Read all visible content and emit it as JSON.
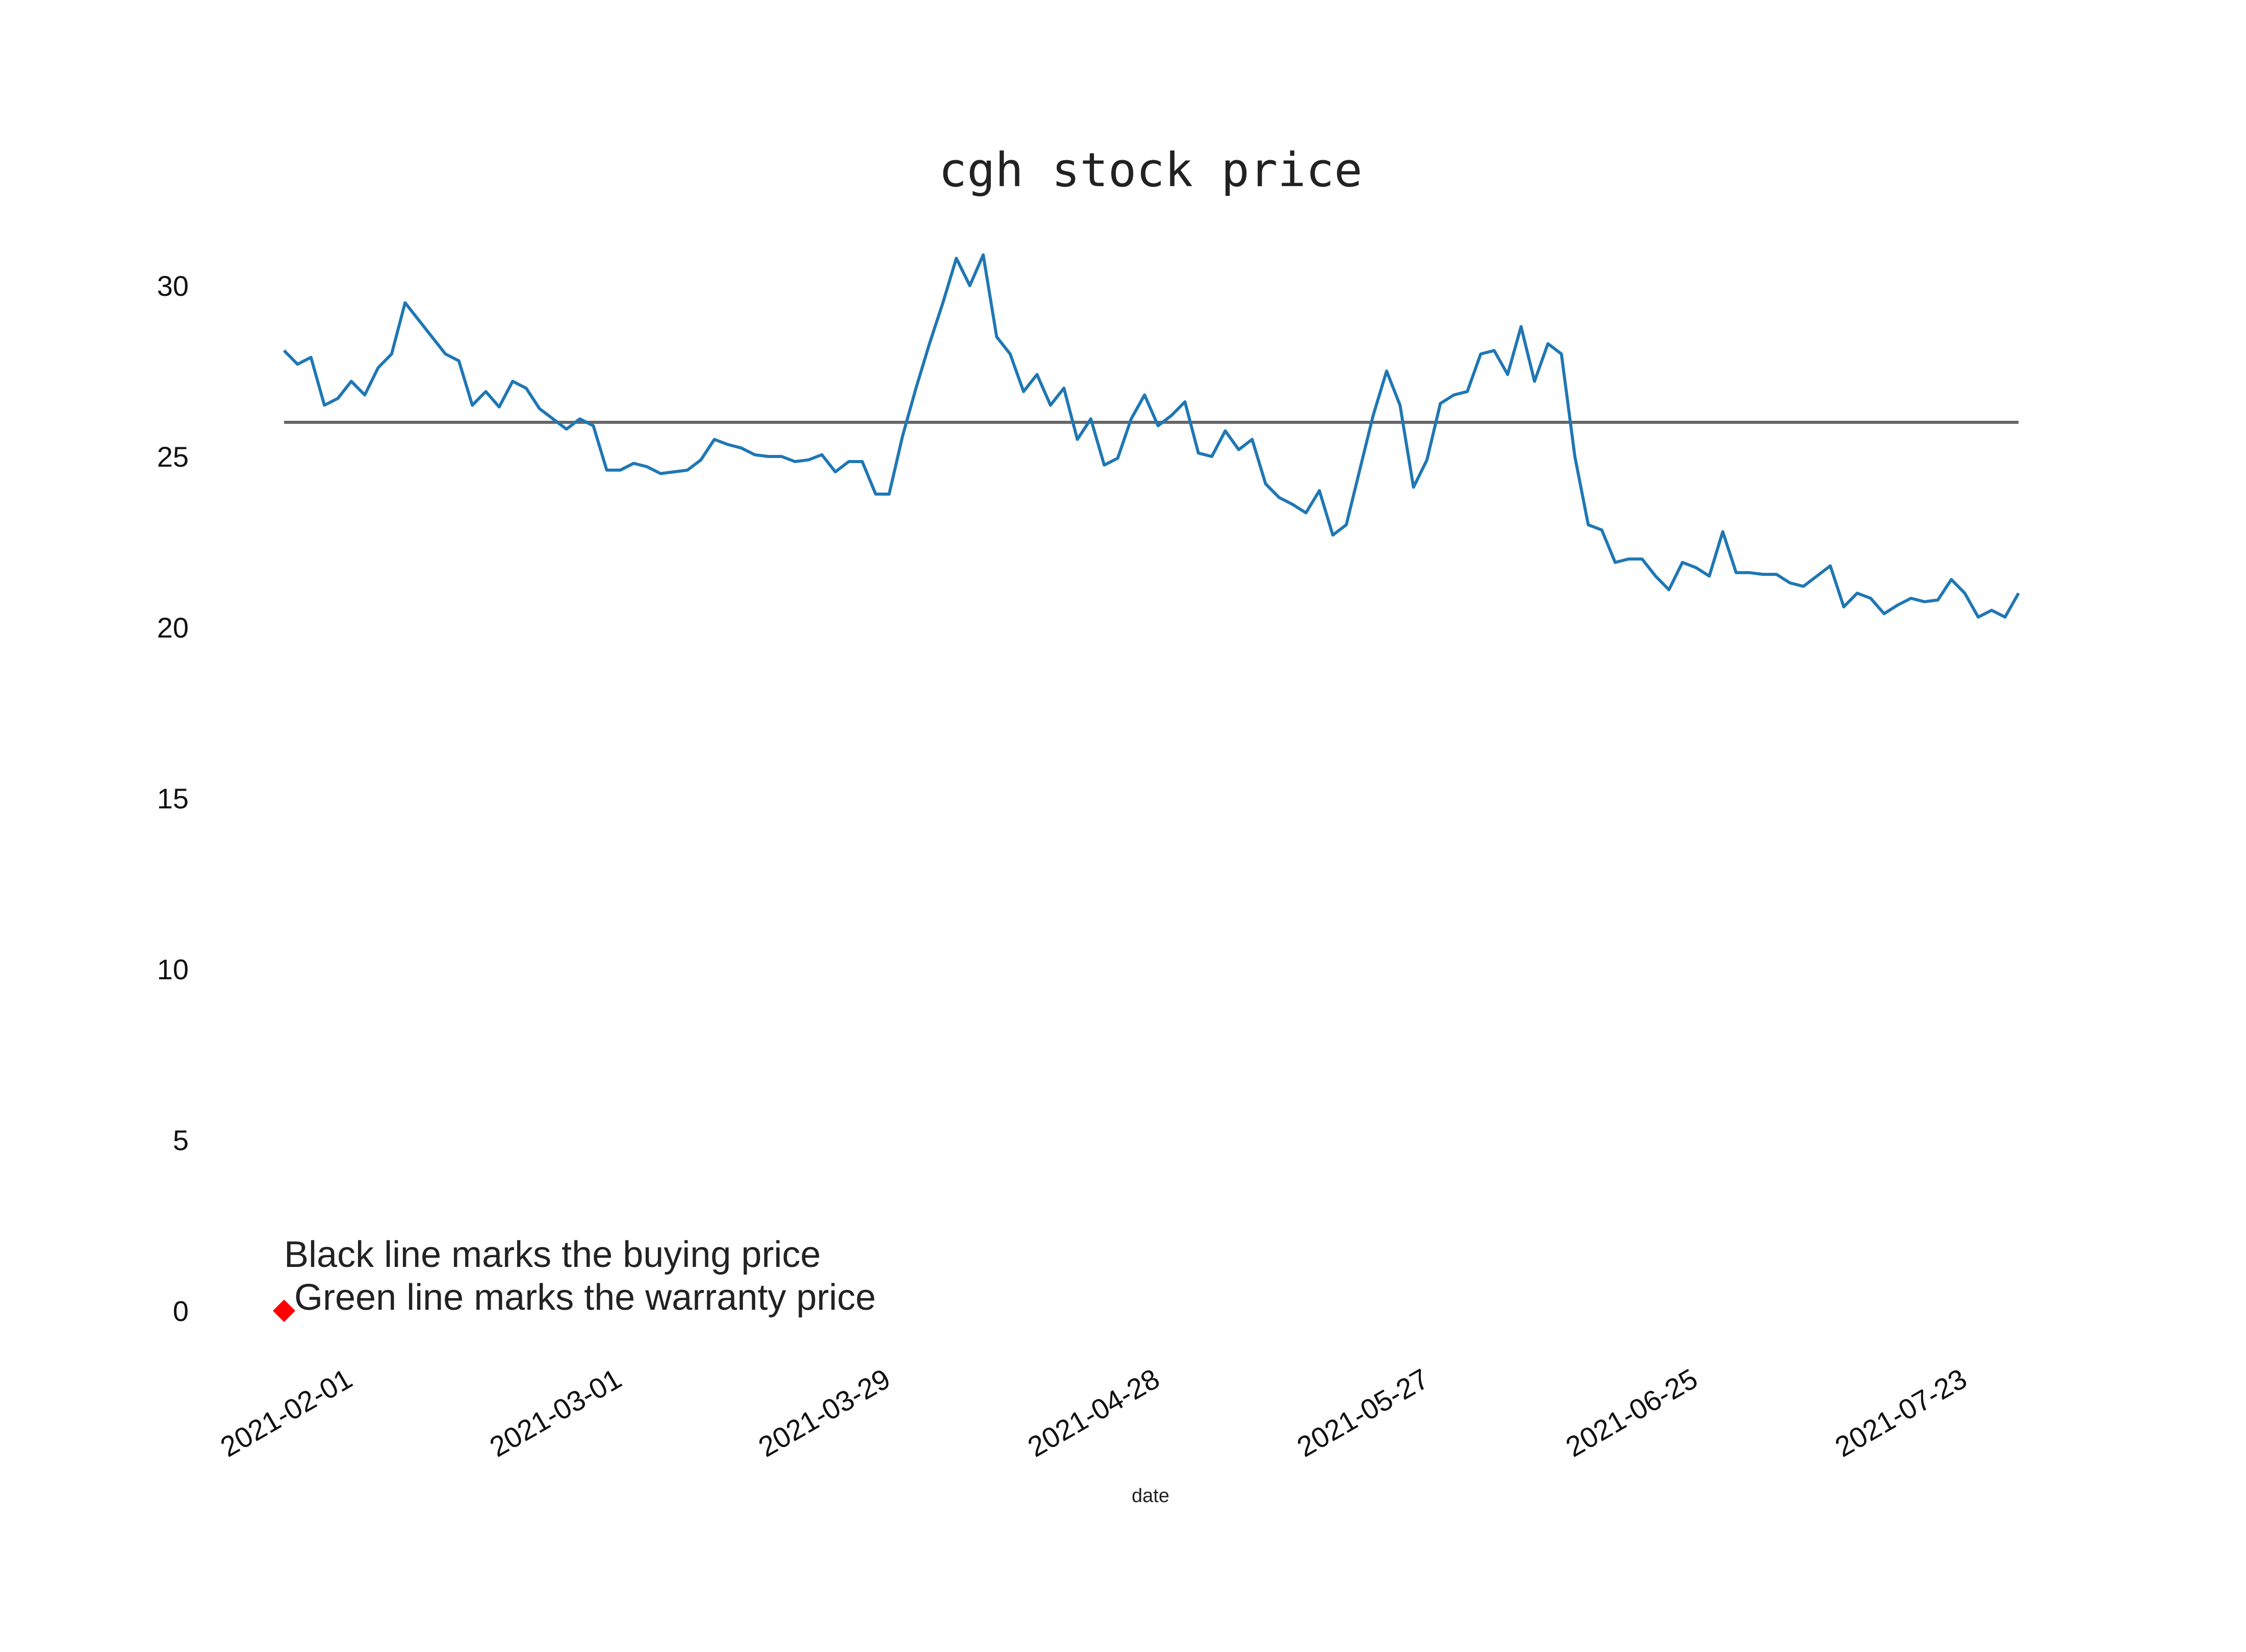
{
  "chart_data": {
    "type": "line",
    "title": "cgh stock price",
    "xlabel": "date",
    "ylabel": "",
    "ylim": [
      -1.6,
      31.5
    ],
    "y_ticks": [
      0,
      5,
      10,
      15,
      20,
      25,
      30
    ],
    "x_tick_labels": [
      "2021-02-01",
      "2021-03-01",
      "2021-03-29",
      "2021-04-28",
      "2021-05-27",
      "2021-06-25",
      "2021-07-23"
    ],
    "grid": false,
    "series": [
      {
        "color": "#1f77b4",
        "values": [
          28.1,
          27.7,
          27.9,
          26.5,
          26.7,
          27.2,
          26.8,
          27.6,
          28.0,
          29.5,
          29.0,
          28.5,
          28.0,
          27.8,
          26.5,
          26.9,
          26.45,
          27.2,
          27.0,
          26.4,
          26.1,
          25.8,
          26.1,
          25.9,
          24.6,
          24.6,
          24.8,
          24.7,
          24.5,
          24.55,
          24.6,
          24.9,
          25.5,
          25.35,
          25.25,
          25.05,
          25.0,
          25.0,
          24.85,
          24.9,
          25.05,
          24.55,
          24.85,
          24.85,
          23.9,
          23.9,
          25.6,
          27.0,
          28.3,
          29.5,
          30.8,
          30.0,
          30.9,
          28.5,
          28.0,
          26.9,
          27.4,
          26.5,
          27.0,
          25.5,
          26.1,
          24.75,
          24.95,
          26.1,
          26.8,
          25.9,
          26.2,
          26.6,
          25.1,
          25.0,
          25.75,
          25.2,
          25.5,
          24.2,
          23.8,
          23.6,
          23.35,
          24.0,
          22.7,
          23.0,
          24.6,
          26.2,
          27.5,
          26.5,
          24.1,
          24.9,
          26.55,
          26.8,
          26.9,
          28.0,
          28.1,
          27.4,
          28.8,
          27.2,
          28.3,
          28.0,
          25.0,
          23.0,
          22.85,
          21.9,
          22.0,
          22.0,
          21.5,
          21.1,
          21.9,
          21.75,
          21.5,
          22.8,
          21.6,
          21.6,
          21.55,
          21.55,
          21.3,
          21.2,
          21.5,
          21.8,
          20.6,
          21.0,
          20.85,
          20.4,
          20.65,
          20.85,
          20.75,
          20.8,
          21.4,
          21.0,
          20.3,
          20.5,
          20.3,
          21.0
        ]
      }
    ],
    "reference_lines": [
      {
        "y": 26.0,
        "color": "#666666"
      }
    ],
    "markers": [
      {
        "x_index": 0,
        "y": 0.0,
        "color": "#ff0000",
        "shape": "diamond"
      }
    ],
    "annotations": [
      "Black line marks the buying price",
      " Green line marks the warranty price"
    ]
  }
}
